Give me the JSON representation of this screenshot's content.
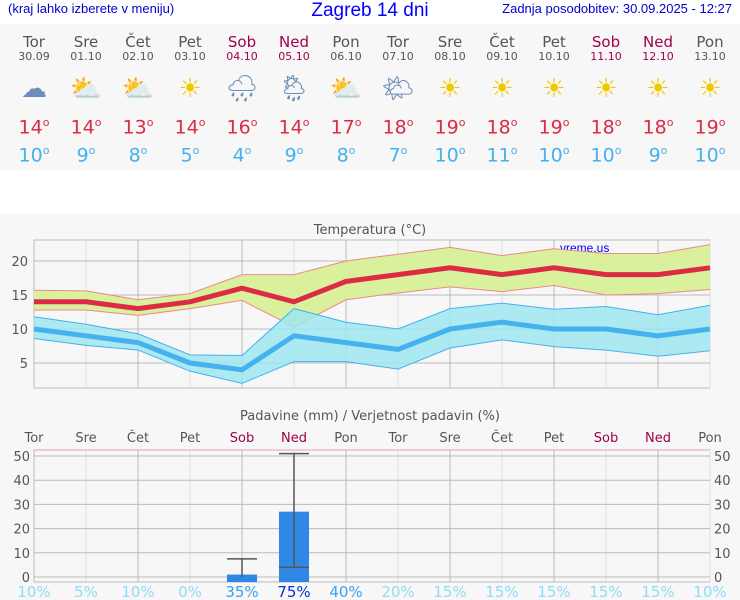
{
  "header": {
    "hint": "(kraj lahko izberete v meniju)",
    "title": "Zagreb 14 dni",
    "updated": "Zadnja posodobitev: 30.09.2025 - 12:27"
  },
  "colors": {
    "max": "#dc2b45",
    "min": "#45b1ef",
    "max_band": "#d9f09c",
    "min_band": "#9fe6f0",
    "precip": "#2f88e6",
    "weekend": "#a0004c"
  },
  "days": [
    {
      "name": "Tor",
      "date": "30.09",
      "icon": "cloudy-icon",
      "max": "14",
      "min": "10",
      "weekend": false
    },
    {
      "name": "Sre",
      "date": "01.10",
      "icon": "partly-cloudy-icon",
      "max": "14",
      "min": "9",
      "weekend": false
    },
    {
      "name": "Čet",
      "date": "02.10",
      "icon": "partly-cloudy-icon",
      "max": "13",
      "min": "8",
      "weekend": false
    },
    {
      "name": "Pet",
      "date": "03.10",
      "icon": "sun-icon",
      "max": "14",
      "min": "5",
      "weekend": false
    },
    {
      "name": "Sob",
      "date": "04.10",
      "icon": "rain-icon",
      "max": "16",
      "min": "4",
      "weekend": true
    },
    {
      "name": "Ned",
      "date": "05.10",
      "icon": "sun-rain-icon",
      "max": "14",
      "min": "9",
      "weekend": true
    },
    {
      "name": "Pon",
      "date": "06.10",
      "icon": "partly-cloudy-icon",
      "max": "17",
      "min": "8",
      "weekend": false
    },
    {
      "name": "Tor",
      "date": "07.10",
      "icon": "mostly-sunny-icon",
      "max": "18",
      "min": "7",
      "weekend": false
    },
    {
      "name": "Sre",
      "date": "08.10",
      "icon": "sun-icon",
      "max": "19",
      "min": "10",
      "weekend": false
    },
    {
      "name": "Čet",
      "date": "09.10",
      "icon": "sun-icon",
      "max": "18",
      "min": "11",
      "weekend": false
    },
    {
      "name": "Pet",
      "date": "10.10",
      "icon": "sun-icon",
      "max": "19",
      "min": "10",
      "weekend": false
    },
    {
      "name": "Sob",
      "date": "11.10",
      "icon": "sun-icon",
      "max": "18",
      "min": "10",
      "weekend": true
    },
    {
      "name": "Ned",
      "date": "12.10",
      "icon": "sun-icon",
      "max": "18",
      "min": "9",
      "weekend": true
    },
    {
      "name": "Pon",
      "date": "13.10",
      "icon": "sun-icon",
      "max": "19",
      "min": "10",
      "weekend": false
    }
  ],
  "chart_data": [
    {
      "type": "line",
      "title": "Temperatura (°C)",
      "watermark": "vreme.us",
      "ylim": [
        1.3,
        23.1
      ],
      "yticks": [
        5,
        10,
        15,
        20
      ],
      "grid": true,
      "series": [
        {
          "values": [
            14,
            14,
            13,
            14,
            16,
            14,
            17,
            18,
            19,
            18,
            19,
            18,
            18,
            19
          ],
          "band_upper": [
            15.7,
            15.6,
            14.3,
            15.2,
            18,
            18,
            20,
            21,
            22,
            20.8,
            21.8,
            21.1,
            21.1,
            22.4
          ],
          "band_lower": [
            12.8,
            12.8,
            12,
            13,
            14.2,
            10.3,
            14.3,
            15.3,
            16.2,
            15.5,
            16.4,
            15,
            15.2,
            15.8
          ]
        },
        {
          "values": [
            10,
            9,
            8,
            5,
            4,
            9,
            8,
            7,
            10,
            11,
            10,
            10,
            9,
            10
          ],
          "band_upper": [
            11.8,
            10.7,
            9.3,
            6.2,
            6.1,
            13,
            11,
            10,
            13,
            13.8,
            12.9,
            13.3,
            12.1,
            13.5
          ],
          "band_lower": [
            8.6,
            7.6,
            6.9,
            3.8,
            2,
            5.2,
            5.2,
            4.1,
            7.2,
            8.4,
            7.4,
            6.9,
            6,
            6.8
          ]
        }
      ]
    },
    {
      "type": "bar",
      "title": "Padavine (mm) / Verjetnost padavin (%)",
      "categories": [
        "Tor",
        "Sre",
        "Čet",
        "Pet",
        "Sob",
        "Ned",
        "Pon",
        "Tor",
        "Sre",
        "Čet",
        "Pet",
        "Sob",
        "Ned",
        "Pon"
      ],
      "values": [
        0,
        0,
        0,
        0,
        1,
        27,
        0,
        0,
        0,
        0,
        0,
        0,
        0,
        0
      ],
      "error_low": [
        null,
        null,
        null,
        null,
        0,
        4,
        null,
        null,
        null,
        null,
        null,
        null,
        null,
        null
      ],
      "error_high": [
        null,
        null,
        null,
        null,
        7.5,
        51,
        null,
        null,
        null,
        null,
        null,
        null,
        null,
        null
      ],
      "probability": [
        "10%",
        "5%",
        "10%",
        "0%",
        "35%",
        "75%",
        "40%",
        "20%",
        "15%",
        "15%",
        "15%",
        "15%",
        "15%",
        "10%"
      ],
      "ylim": [
        0,
        52
      ],
      "yticks": [
        0,
        10,
        20,
        30,
        40,
        50
      ],
      "grid": true
    }
  ]
}
